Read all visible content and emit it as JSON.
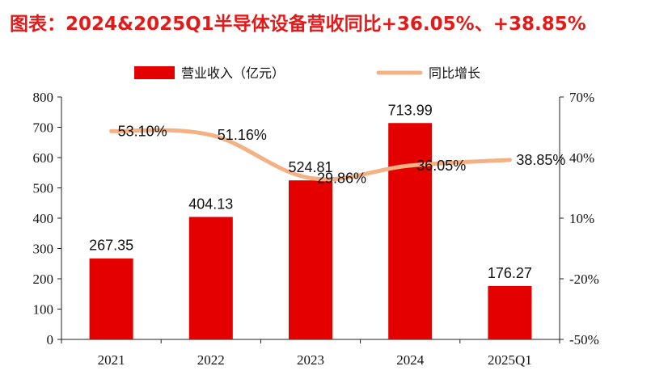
{
  "chart_data": {
    "type": "bar",
    "title": "图表：2024&2025Q1半导体设备营收同比+36.05%、+38.85%",
    "categories": [
      "2021",
      "2022",
      "2023",
      "2024",
      "2025Q1"
    ],
    "series": [
      {
        "name": "营业收入（亿元）",
        "type": "bar",
        "axis": "left",
        "color": "#e50000",
        "values": [
          267.35,
          404.13,
          524.81,
          713.99,
          176.27
        ],
        "labels": [
          "267.35",
          "404.13",
          "524.81",
          "713.99",
          "176.27"
        ]
      },
      {
        "name": "同比增长",
        "type": "line",
        "axis": "right",
        "color": "#f4b183",
        "values": [
          53.1,
          51.16,
          29.86,
          36.05,
          38.85
        ],
        "labels": [
          "53.10%",
          "51.16%",
          "29.86%",
          "36.05%",
          "38.85%"
        ]
      }
    ],
    "y_left": {
      "range": [
        0,
        800
      ],
      "ticks": [
        0,
        100,
        200,
        300,
        400,
        500,
        600,
        700,
        800
      ],
      "tick_labels": [
        "0",
        "100",
        "200",
        "300",
        "400",
        "500",
        "600",
        "700",
        "800"
      ]
    },
    "y_right": {
      "range": [
        -50,
        70
      ],
      "ticks": [
        -50,
        -20,
        10,
        40,
        70
      ],
      "tick_labels": [
        "-50%",
        "-20%",
        "10%",
        "40%",
        "70%"
      ]
    },
    "grid": false,
    "legend": "top-center"
  }
}
